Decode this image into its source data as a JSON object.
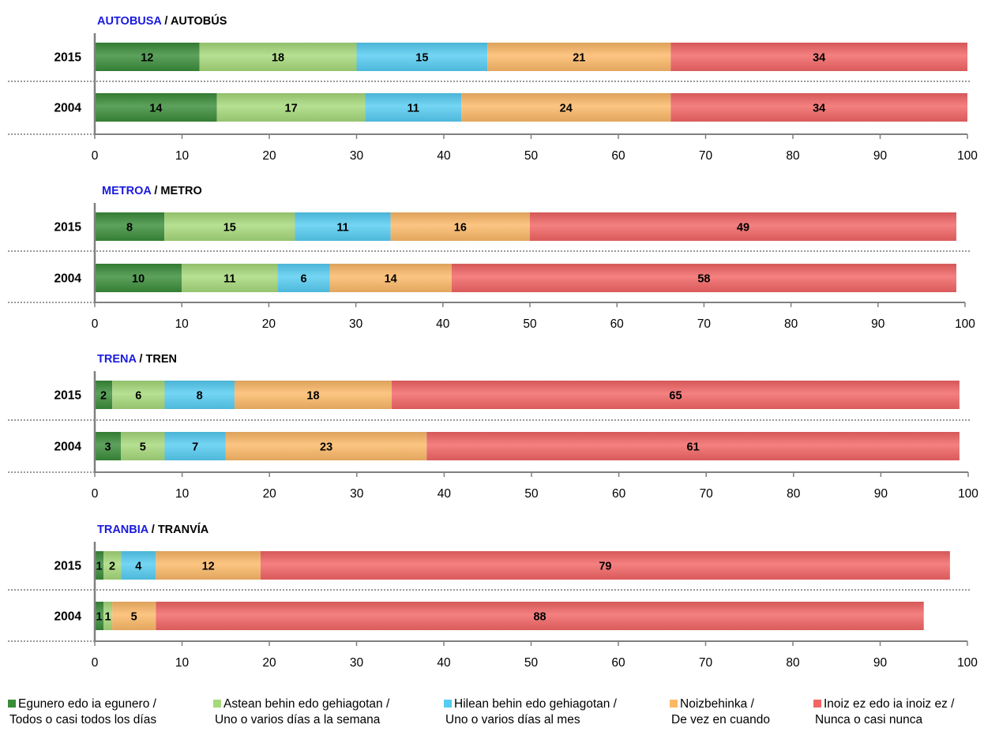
{
  "colors": {
    "egunero": "#3a8c3a",
    "astean": "#a6d97a",
    "hilean": "#55ccf2",
    "noizbehinka": "#fbb867",
    "inoiz": "#f26464",
    "title_blue": "#1a1adf",
    "axis": "#808080"
  },
  "legend": [
    {
      "key": "egunero",
      "line1": "Egunero edo ia egunero /",
      "line2": "Todos o casi todos los días",
      "icon": "square-swatch-icon"
    },
    {
      "key": "astean",
      "line1": "Astean behin edo gehiagotan /",
      "line2": "Uno o varios días a la semana",
      "icon": "square-swatch-icon"
    },
    {
      "key": "hilean",
      "line1": "Hilean behin edo gehiagotan /",
      "line2": "Uno o varios días al mes",
      "icon": "square-swatch-icon"
    },
    {
      "key": "noizbehinka",
      "line1": "Noizbehinka /",
      "line2": "De vez en cuando",
      "icon": "square-swatch-icon"
    },
    {
      "key": "inoiz",
      "line1": "Inoiz ez edo ia inoiz ez /",
      "line2": "Nunca o casi nunca",
      "icon": "square-swatch-icon"
    }
  ],
  "chart_data": [
    {
      "type": "bar",
      "orientation": "horizontal-stacked",
      "title_eu": "AUTOBUSA",
      "title_sep": " / ",
      "title_es": "AUTOBÚS",
      "categories": [
        "2015",
        "2004"
      ],
      "series": [
        {
          "name": "Egunero edo ia egunero / Todos o casi todos los días",
          "key": "egunero",
          "values": [
            12,
            14
          ]
        },
        {
          "name": "Astean behin edo gehiagotan / Uno o varios días a la semana",
          "key": "astean",
          "values": [
            18,
            17
          ]
        },
        {
          "name": "Hilean behin edo gehiagotan / Uno o varios días al mes",
          "key": "hilean",
          "values": [
            15,
            11
          ]
        },
        {
          "name": "Noizbehinka / De vez en cuando",
          "key": "noizbehinka",
          "values": [
            21,
            24
          ]
        },
        {
          "name": "Inoiz ez edo ia inoiz ez / Nunca o casi nunca",
          "key": "inoiz",
          "values": [
            34,
            34
          ]
        }
      ],
      "xlim": [
        0,
        100
      ],
      "xticks": [
        "0",
        "10",
        "20",
        "30",
        "40",
        "50",
        "60",
        "70",
        "80",
        "90",
        "100"
      ],
      "grid": false
    },
    {
      "type": "bar",
      "orientation": "horizontal-stacked",
      "title_eu": "METROA",
      "title_sep": " / ",
      "title_es": "METRO",
      "categories": [
        "2015",
        "2004"
      ],
      "series": [
        {
          "name": "Egunero edo ia egunero / Todos o casi todos los días",
          "key": "egunero",
          "values": [
            8,
            10
          ]
        },
        {
          "name": "Astean behin edo gehiagotan / Uno o varios días a la semana",
          "key": "astean",
          "values": [
            15,
            11
          ]
        },
        {
          "name": "Hilean behin edo gehiagotan / Uno o varios días al mes",
          "key": "hilean",
          "values": [
            11,
            6
          ]
        },
        {
          "name": "Noizbehinka / De vez en cuando",
          "key": "noizbehinka",
          "values": [
            16,
            14
          ]
        },
        {
          "name": "Inoiz ez edo ia inoiz ez / Nunca o casi nunca",
          "key": "inoiz",
          "values": [
            49,
            58
          ]
        }
      ],
      "xlim": [
        0,
        100
      ],
      "xticks": [
        "0",
        "10",
        "20",
        "30",
        "40",
        "50",
        "60",
        "70",
        "80",
        "90",
        "100"
      ],
      "grid": false
    },
    {
      "type": "bar",
      "orientation": "horizontal-stacked",
      "title_eu": "TRENA",
      "title_sep": " / ",
      "title_es": "TREN",
      "categories": [
        "2015",
        "2004"
      ],
      "series": [
        {
          "name": "Egunero edo ia egunero / Todos o casi todos los días",
          "key": "egunero",
          "values": [
            2,
            3
          ]
        },
        {
          "name": "Astean behin edo gehiagotan / Uno o varios días a la semana",
          "key": "astean",
          "values": [
            6,
            5
          ]
        },
        {
          "name": "Hilean behin edo gehiagotan / Uno o varios días al mes",
          "key": "hilean",
          "values": [
            8,
            7
          ]
        },
        {
          "name": "Noizbehinka / De vez en cuando",
          "key": "noizbehinka",
          "values": [
            18,
            23
          ]
        },
        {
          "name": "Inoiz ez edo ia inoiz ez / Nunca o casi nunca",
          "key": "inoiz",
          "values": [
            65,
            61
          ]
        }
      ],
      "xlim": [
        0,
        100
      ],
      "xticks": [
        "0",
        "10",
        "20",
        "30",
        "40",
        "50",
        "60",
        "70",
        "80",
        "90",
        "100"
      ],
      "grid": false
    },
    {
      "type": "bar",
      "orientation": "horizontal-stacked",
      "title_eu": "TRANBIA",
      "title_sep": " / ",
      "title_es": "TRANVÍA",
      "categories": [
        "2015",
        "2004"
      ],
      "series": [
        {
          "name": "Egunero edo ia egunero / Todos o casi todos los días",
          "key": "egunero",
          "values": [
            1,
            1
          ]
        },
        {
          "name": "Astean behin edo gehiagotan / Uno o varios días a la semana",
          "key": "astean",
          "values": [
            2,
            1
          ]
        },
        {
          "name": "Hilean behin edo gehiagotan / Uno o varios días al mes",
          "key": "hilean",
          "values": [
            4,
            0
          ]
        },
        {
          "name": "Noizbehinka / De vez en cuando",
          "key": "noizbehinka",
          "values": [
            12,
            5
          ]
        },
        {
          "name": "Inoiz ez edo ia inoiz ez / Nunca o casi nunca",
          "key": "inoiz",
          "values": [
            79,
            88
          ]
        }
      ],
      "xlim": [
        0,
        100
      ],
      "xticks": [
        "0",
        "10",
        "20",
        "30",
        "40",
        "50",
        "60",
        "70",
        "80",
        "90",
        "100"
      ],
      "grid": false
    }
  ]
}
